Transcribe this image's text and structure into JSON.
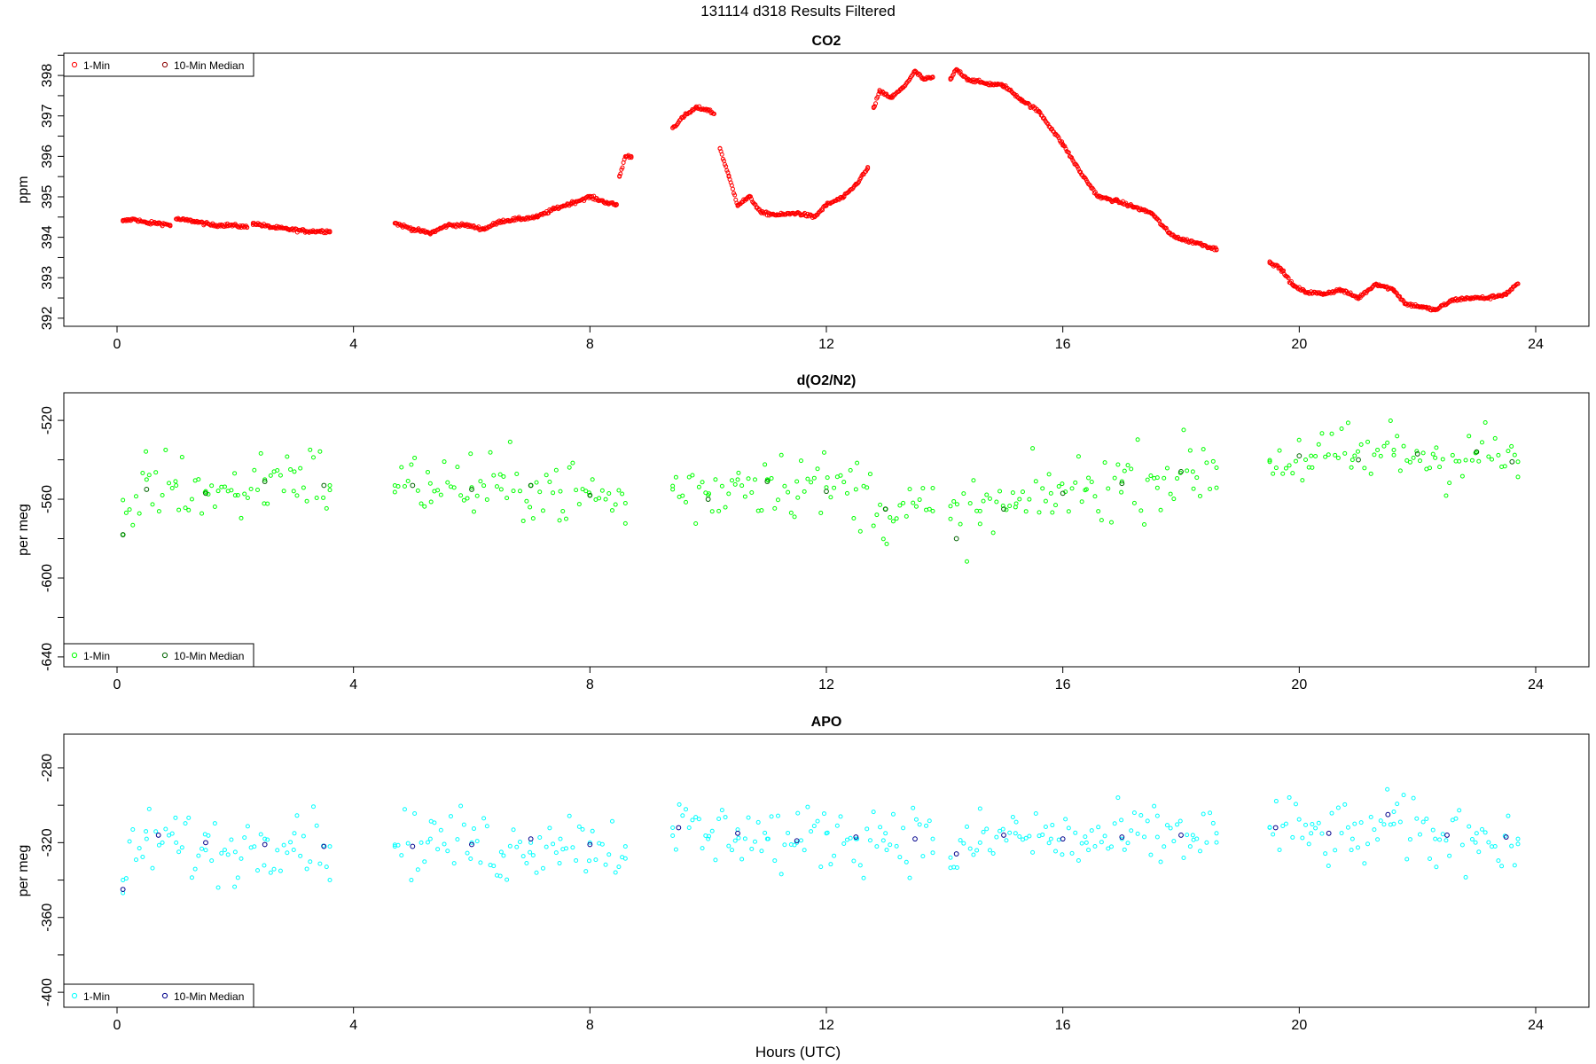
{
  "page_title": "131114   d318   Results Filtered",
  "xlabel": "Hours (UTC)",
  "x_ticks": [
    0,
    4,
    8,
    12,
    16,
    20,
    24
  ],
  "legend_labels": [
    "1-Min",
    "10-Min Median"
  ],
  "chart_data": [
    {
      "type": "scatter",
      "title": "CO2",
      "ylabel": "ppm",
      "xlim": [
        -0.9,
        24.9
      ],
      "ylim": [
        391.8,
        398.55
      ],
      "y_ticks": [
        392,
        393,
        394,
        395,
        396,
        397,
        398
      ],
      "legend_position": "top-left",
      "colors": {
        "one_min": "#ff0000",
        "median": "#8b0000"
      },
      "series": [
        {
          "name": "1-Min",
          "kind": "one_min",
          "segments": [
            {
              "x": [
                0.1,
                0.3,
                0.5,
                0.7,
                0.9
              ],
              "y": [
                394.4,
                394.45,
                394.35,
                394.35,
                394.3
              ]
            },
            {
              "x": [
                1.0,
                1.3,
                1.6,
                1.9,
                2.2
              ],
              "y": [
                394.45,
                394.4,
                394.3,
                394.3,
                394.25
              ]
            },
            {
              "x": [
                2.3,
                2.6,
                2.9,
                3.2,
                3.6
              ],
              "y": [
                394.35,
                394.25,
                394.2,
                394.15,
                394.15
              ]
            },
            {
              "x": [
                4.7,
                5.0,
                5.3,
                5.6,
                5.9,
                6.2,
                6.5,
                6.8,
                7.1,
                7.4,
                7.7,
                8.0,
                8.3,
                8.45
              ],
              "y": [
                394.35,
                394.2,
                394.1,
                394.3,
                394.3,
                394.2,
                394.4,
                394.45,
                394.5,
                394.7,
                394.85,
                395.0,
                394.85,
                394.8
              ]
            },
            {
              "x": [
                8.5,
                8.6,
                8.7
              ],
              "y": [
                395.5,
                396.0,
                396.0
              ]
            },
            {
              "x": [
                9.4,
                9.6,
                9.8,
                10.0,
                10.1
              ],
              "y": [
                396.7,
                397.0,
                397.2,
                397.15,
                397.05
              ]
            },
            {
              "x": [
                10.2,
                10.35,
                10.5,
                10.7,
                10.9,
                11.2,
                11.5,
                11.8,
                12.0,
                12.3,
                12.5,
                12.7
              ],
              "y": [
                396.2,
                395.5,
                394.8,
                395.0,
                394.6,
                394.55,
                394.6,
                394.5,
                394.8,
                395.0,
                395.3,
                395.7
              ]
            },
            {
              "x": [
                12.8,
                12.9,
                13.1,
                13.3,
                13.5,
                13.65,
                13.8
              ],
              "y": [
                397.2,
                397.6,
                397.45,
                397.7,
                398.1,
                397.9,
                397.95
              ]
            },
            {
              "x": [
                14.1,
                14.2,
                14.4,
                14.7,
                15.0,
                15.3,
                15.6,
                16.0,
                16.3,
                16.6,
                16.9,
                17.2,
                17.5,
                17.8,
                18.0,
                18.3,
                18.6
              ],
              "y": [
                397.9,
                398.15,
                397.9,
                397.8,
                397.75,
                397.4,
                397.1,
                396.3,
                395.6,
                395.0,
                394.9,
                394.75,
                394.6,
                394.1,
                393.95,
                393.85,
                393.7
              ]
            },
            {
              "x": [
                19.5,
                19.7,
                19.9,
                20.1,
                20.4,
                20.7,
                21.0,
                21.3,
                21.6,
                21.8,
                22.0,
                22.3,
                22.6,
                22.9,
                23.2,
                23.5,
                23.7
              ],
              "y": [
                393.4,
                393.2,
                392.8,
                392.65,
                392.6,
                392.7,
                392.5,
                392.85,
                392.7,
                392.35,
                392.3,
                392.2,
                392.45,
                392.5,
                392.5,
                392.6,
                392.85
              ]
            }
          ]
        }
      ]
    },
    {
      "type": "scatter",
      "title": "d(O2/N2)",
      "ylabel": "per meg",
      "xlim": [
        -0.9,
        24.9
      ],
      "ylim": [
        -645,
        -506
      ],
      "y_ticks": [
        -640,
        -600,
        -560,
        -520
      ],
      "legend_position": "bottom-left",
      "colors": {
        "one_min": "#00ff00",
        "median": "#006400"
      },
      "series": [
        {
          "name": "1-Min",
          "kind": "one_min",
          "segments": [
            {
              "x": [
                0.1,
                0.5,
                1.0,
                1.5,
                2.0,
                2.5,
                3.0,
                3.6
              ],
              "y": [
                -578,
                -550,
                -553,
                -556,
                -558,
                -550,
                -546,
                -553
              ]
            },
            {
              "x": [
                4.7,
                5.3,
                6.0,
                6.5,
                7.0,
                7.5,
                8.0,
                8.6
              ],
              "y": [
                -553,
                -552,
                -554,
                -555,
                -553,
                -556,
                -558,
                -562
              ]
            },
            {
              "x": [
                9.4,
                10.0,
                10.5,
                11.0,
                11.5,
                12.0,
                12.5,
                13.0,
                13.8
              ],
              "y": [
                -555,
                -558,
                -550,
                -550,
                -551,
                -554,
                -555,
                -565,
                -566
              ]
            },
            {
              "x": [
                14.1,
                14.6,
                15.2,
                15.8,
                16.4,
                17.0,
                17.6,
                18.2,
                18.6
              ],
              "y": [
                -570,
                -566,
                -564,
                -557,
                -555,
                -551,
                -549,
                -546,
                -544
              ]
            },
            {
              "x": [
                19.5,
                20.2,
                20.9,
                21.6,
                22.3,
                23.0,
                23.7
              ],
              "y": [
                -541,
                -538,
                -540,
                -535,
                -539,
                -536,
                -541
              ]
            }
          ]
        },
        {
          "name": "10-Min Median",
          "kind": "median",
          "segments": [
            {
              "x": [
                0.1,
                0.5,
                1.5,
                2.5,
                3.5
              ],
              "y": [
                -578,
                -555,
                -557,
                -551,
                -553
              ]
            },
            {
              "x": [
                5.0,
                6.0,
                7.0,
                8.0
              ],
              "y": [
                -553,
                -555,
                -553,
                -558
              ]
            },
            {
              "x": [
                10.0,
                11.0,
                12.0,
                13.0
              ],
              "y": [
                -560,
                -551,
                -556,
                -565
              ]
            },
            {
              "x": [
                14.2,
                15.0,
                16.0,
                17.0,
                18.0
              ],
              "y": [
                -580,
                -565,
                -557,
                -552,
                -546
              ]
            },
            {
              "x": [
                20.0,
                21.0,
                22.0,
                23.0,
                23.6
              ],
              "y": [
                -538,
                -540,
                -537,
                -536,
                -541
              ]
            }
          ]
        }
      ]
    },
    {
      "type": "scatter",
      "title": "APO",
      "ylabel": "per meg",
      "xlim": [
        -0.9,
        24.9
      ],
      "ylim": [
        -408,
        -262
      ],
      "y_ticks": [
        -400,
        -360,
        -320,
        -280
      ],
      "legend_position": "bottom-left",
      "colors": {
        "one_min": "#00ffff",
        "median": "#00008b"
      },
      "series": [
        {
          "name": "1-Min",
          "kind": "one_min",
          "segments": [
            {
              "x": [
                0.1,
                0.5,
                1.0,
                1.5,
                2.0,
                2.5,
                3.0,
                3.6
              ],
              "y": [
                -340,
                -318,
                -320,
                -324,
                -325,
                -318,
                -315,
                -322
              ]
            },
            {
              "x": [
                4.7,
                5.3,
                6.0,
                6.5,
                7.0,
                7.5,
                8.0,
                8.6
              ],
              "y": [
                -322,
                -318,
                -320,
                -325,
                -320,
                -318,
                -320,
                -322
              ]
            },
            {
              "x": [
                9.4,
                10.0,
                10.5,
                11.0,
                11.5,
                12.0,
                12.5,
                13.0,
                13.8
              ],
              "y": [
                -312,
                -318,
                -313,
                -318,
                -320,
                -315,
                -318,
                -315,
                -318
              ]
            },
            {
              "x": [
                14.1,
                14.6,
                15.2,
                15.8,
                16.4,
                17.0,
                17.6,
                18.2,
                18.6
              ],
              "y": [
                -328,
                -320,
                -315,
                -318,
                -320,
                -318,
                -317,
                -316,
                -315
              ]
            },
            {
              "x": [
                19.5,
                20.2,
                20.9,
                21.6,
                22.3,
                23.0,
                23.7
              ],
              "y": [
                -312,
                -315,
                -318,
                -310,
                -318,
                -315,
                -318
              ]
            }
          ]
        },
        {
          "name": "10-Min Median",
          "kind": "median",
          "segments": [
            {
              "x": [
                0.1,
                0.7,
                1.5,
                2.5,
                3.5
              ],
              "y": [
                -345,
                -316,
                -320,
                -321,
                -322
              ]
            },
            {
              "x": [
                5.0,
                6.0,
                7.0,
                8.0
              ],
              "y": [
                -322,
                -321,
                -318,
                -321
              ]
            },
            {
              "x": [
                9.5,
                10.5,
                11.5,
                12.5,
                13.5
              ],
              "y": [
                -312,
                -315,
                -319,
                -317,
                -318
              ]
            },
            {
              "x": [
                14.2,
                15.0,
                16.0,
                17.0,
                18.0
              ],
              "y": [
                -326,
                -316,
                -318,
                -317,
                -316
              ]
            },
            {
              "x": [
                19.6,
                20.5,
                21.5,
                22.5,
                23.5
              ],
              "y": [
                -312,
                -315,
                -305,
                -316,
                -317
              ]
            }
          ]
        }
      ]
    }
  ]
}
